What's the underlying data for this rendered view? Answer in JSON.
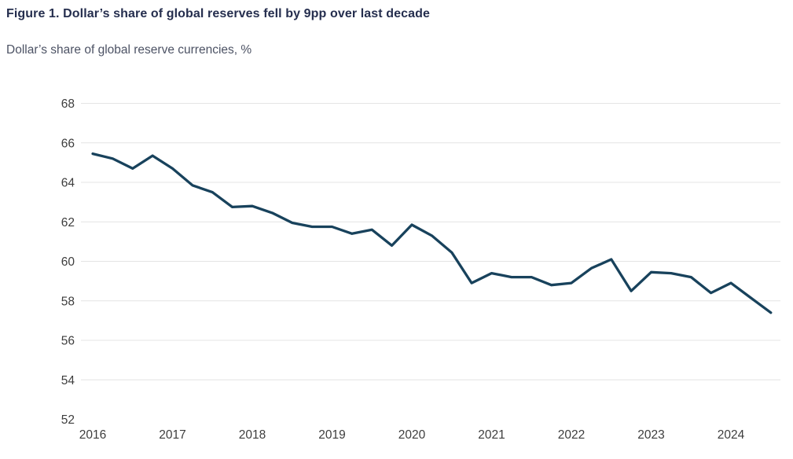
{
  "header": {
    "title": "Figure 1. Dollar’s share of global reserves fell by 9pp over last decade",
    "subtitle": "Dollar’s share of global reserve currencies, %"
  },
  "chart_data": {
    "type": "line",
    "title": "Figure 1. Dollar’s share of global reserves fell by 9pp over last decade",
    "subtitle": "Dollar’s share of global reserve currencies, %",
    "grid": "horizontal-only",
    "legend": "none",
    "colors": {
      "line": "#18425c",
      "gridline": "#e4e4e4",
      "tick_text": "#3d3d3d",
      "title_text": "#252e4e",
      "subtitle_text": "#4c5264",
      "background": "#ffffff"
    },
    "x_axis": {
      "ticks": [
        "2016",
        "2017",
        "2018",
        "2019",
        "2020",
        "2021",
        "2022",
        "2023",
        "2024"
      ],
      "frequency_of_points": "quarterly"
    },
    "y_axis": {
      "ticks": [
        68,
        66,
        64,
        62,
        60,
        58,
        56,
        54,
        52
      ],
      "range": [
        52,
        68
      ],
      "bottom_tick_has_gridline": false
    },
    "series": [
      {
        "name": "usd-share-of-global-reserves",
        "start": "2016 Q1",
        "end": "2024 Q3",
        "values": [
          65.45,
          65.2,
          64.7,
          65.35,
          64.7,
          63.85,
          63.5,
          62.75,
          62.8,
          62.45,
          61.95,
          61.75,
          61.75,
          61.4,
          61.6,
          60.8,
          61.85,
          61.3,
          60.45,
          58.9,
          59.4,
          59.2,
          59.2,
          58.8,
          58.9,
          59.65,
          60.1,
          58.5,
          59.45,
          59.4,
          59.2,
          58.4,
          58.9,
          58.15,
          57.4
        ]
      }
    ]
  }
}
